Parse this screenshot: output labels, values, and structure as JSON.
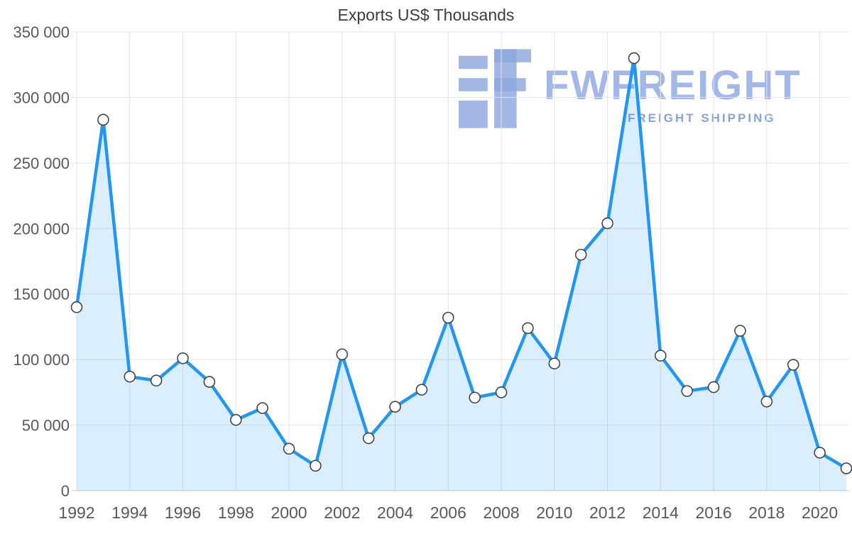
{
  "chart_data": {
    "type": "area",
    "title": "Exports US$ Thousands",
    "x": [
      1992,
      1993,
      1994,
      1995,
      1996,
      1997,
      1998,
      1999,
      2000,
      2001,
      2002,
      2003,
      2004,
      2005,
      2006,
      2007,
      2008,
      2009,
      2010,
      2011,
      2012,
      2013,
      2014,
      2015,
      2016,
      2017,
      2018,
      2019,
      2020,
      2021
    ],
    "values": [
      140000,
      283000,
      87000,
      84000,
      101000,
      83000,
      54000,
      63000,
      32000,
      19000,
      104000,
      40000,
      64000,
      77000,
      132000,
      71000,
      75000,
      124000,
      97000,
      180000,
      204000,
      330000,
      103000,
      76000,
      79000,
      122000,
      68000,
      96000,
      29000,
      17000
    ],
    "ylim": [
      0,
      350000
    ],
    "ytick_step": 50000,
    "ytick_labels": [
      "0",
      "50 000",
      "100 000",
      "150 000",
      "200 000",
      "250 000",
      "300 000",
      "350 000"
    ],
    "xtick_years": [
      1992,
      1994,
      1996,
      1998,
      2000,
      2002,
      2004,
      2006,
      2008,
      2010,
      2012,
      2014,
      2016,
      2018,
      2020
    ],
    "grid": true,
    "legend": "none",
    "xlabel": "",
    "ylabel": "",
    "colors": {
      "line": "#2196f3",
      "fill": "rgba(33,150,243,0.16)",
      "marker_fill": "#ffffff",
      "marker_stroke": "#454545",
      "grid": "#e4e4e4",
      "zero_axis": "#cccccc",
      "tick_text": "#595959",
      "title_text": "#3d3d3d"
    }
  },
  "watermark": {
    "brand": "FWFREIGHT",
    "tagline": "FREIGHT SHIPPING",
    "logo_icon": "fwfreight-logo-icon",
    "brand_color": "#a3b8e8",
    "tagline_color": "#8ba2d6"
  }
}
